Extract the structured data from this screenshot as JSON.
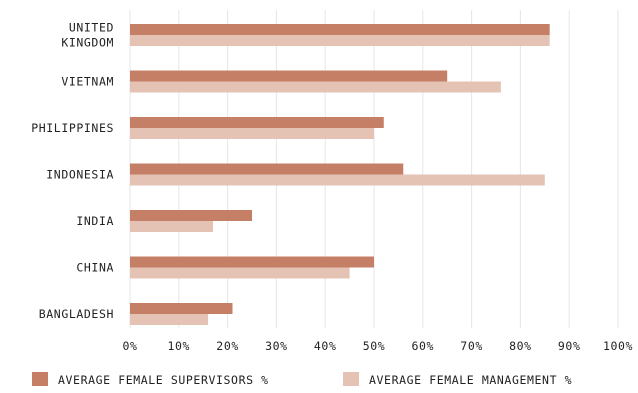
{
  "chart_data": {
    "type": "bar",
    "orientation": "horizontal",
    "categories": [
      "UNITED\nKINGDOM",
      "VIETNAM",
      "PHILIPPINES",
      "INDONESIA",
      "INDIA",
      "CHINA",
      "BANGLADESH"
    ],
    "series": [
      {
        "name": "AVERAGE FEMALE SUPERVISORS %",
        "color": "#C47F66",
        "values": [
          86,
          65,
          52,
          56,
          25,
          50,
          21
        ]
      },
      {
        "name": "AVERAGE FEMALE MANAGEMENT %",
        "color": "#E5C3B4",
        "values": [
          86,
          76,
          50,
          85,
          17,
          45,
          16
        ]
      }
    ],
    "xticks": [
      "0%",
      "10%",
      "20%",
      "30%",
      "40%",
      "50%",
      "60%",
      "70%",
      "80%",
      "90%",
      "100%"
    ],
    "xlim": [
      0,
      100
    ],
    "grid": true,
    "legend_position": "bottom"
  }
}
